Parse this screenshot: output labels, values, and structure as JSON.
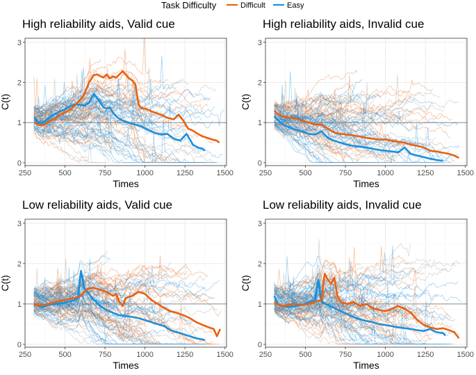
{
  "chart_data": {
    "type": "line",
    "legend": {
      "title": "Task Difficulty",
      "position": "top",
      "entries": [
        {
          "name": "Difficult",
          "color": "#E8610F"
        },
        {
          "name": "Easy",
          "color": "#1B8FDB"
        }
      ]
    },
    "colors": {
      "difficult": "#E8610F",
      "easy": "#1B8FDB",
      "neutral": "#9a9a9a",
      "reference": "#8c8c8c",
      "grid": "#ebebeb"
    },
    "reference_line_y": 1,
    "xlim": [
      250,
      1510
    ],
    "ylim": [
      -0.07,
      3.1
    ],
    "x_ticks": [
      250,
      500,
      750,
      1000,
      1250,
      1500
    ],
    "y_ticks": [
      0,
      1,
      2,
      3
    ],
    "panels": [
      {
        "title": "High reliability aids, Valid cue",
        "xlabel": "Times",
        "ylabel": "C(t)",
        "difficult_mean": {
          "x": [
            310,
            330,
            350,
            380,
            410,
            440,
            470,
            500,
            530,
            560,
            590,
            620,
            650,
            680,
            700,
            720,
            740,
            760,
            780,
            800,
            820,
            840,
            860,
            880,
            900,
            920,
            940,
            960,
            980,
            1000,
            1030,
            1060,
            1100,
            1140,
            1180,
            1210,
            1240,
            1270,
            1300,
            1330,
            1360,
            1390,
            1420,
            1450,
            1465
          ],
          "y": [
            1.02,
            0.95,
            0.93,
            0.97,
            1.05,
            1.1,
            1.2,
            1.25,
            1.32,
            1.42,
            1.55,
            1.7,
            2.0,
            2.18,
            2.2,
            2.16,
            2.12,
            2.2,
            2.1,
            2.15,
            2.12,
            2.2,
            2.28,
            2.2,
            2.1,
            2.05,
            1.95,
            1.45,
            1.35,
            1.35,
            1.3,
            1.25,
            1.2,
            1.12,
            1.08,
            1.2,
            1.05,
            0.85,
            0.8,
            0.72,
            0.66,
            0.62,
            0.58,
            0.55,
            0.5
          ]
        },
        "easy_mean": {
          "x": [
            310,
            330,
            350,
            380,
            410,
            440,
            470,
            500,
            530,
            560,
            590,
            620,
            650,
            680,
            700,
            720,
            740,
            760,
            780,
            800,
            830,
            860,
            900,
            940,
            980,
            1020,
            1060,
            1100,
            1140,
            1180,
            1220,
            1260,
            1300,
            1330,
            1360,
            1375
          ],
          "y": [
            1.12,
            1.0,
            0.98,
            1.05,
            1.15,
            1.22,
            1.28,
            1.33,
            1.4,
            1.45,
            1.45,
            1.42,
            1.5,
            1.72,
            1.62,
            1.5,
            1.38,
            1.35,
            1.38,
            1.25,
            1.12,
            1.05,
            1.0,
            0.95,
            0.9,
            0.82,
            0.75,
            0.7,
            0.72,
            0.6,
            0.55,
            0.72,
            0.45,
            0.38,
            0.35,
            0.3
          ]
        },
        "individual_traces": {
          "difficult": 34,
          "easy": 34,
          "neutral": 18,
          "end_range": [
            650,
            1500
          ]
        }
      },
      {
        "title": "High reliability aids, Invalid cue",
        "xlabel": "Times",
        "ylabel": "C(t)",
        "difficult_mean": {
          "x": [
            305,
            330,
            360,
            400,
            440,
            480,
            520,
            560,
            600,
            640,
            680,
            720,
            760,
            800,
            840,
            880,
            920,
            960,
            1000,
            1040,
            1080,
            1120,
            1160,
            1200,
            1240,
            1280,
            1320,
            1360,
            1400,
            1430,
            1460
          ],
          "y": [
            1.3,
            1.2,
            1.15,
            1.12,
            1.1,
            1.05,
            1.0,
            0.95,
            0.95,
            0.85,
            0.75,
            0.72,
            0.7,
            0.68,
            0.65,
            0.62,
            0.6,
            0.58,
            0.58,
            0.55,
            0.52,
            0.5,
            0.45,
            0.42,
            0.38,
            0.3,
            0.28,
            0.25,
            0.22,
            0.18,
            0.12
          ]
        },
        "easy_mean": {
          "x": [
            305,
            330,
            360,
            400,
            440,
            480,
            520,
            560,
            600,
            640,
            680,
            720,
            760,
            800,
            840,
            880,
            920,
            960,
            1000,
            1040,
            1080,
            1120,
            1160,
            1200,
            1240,
            1280,
            1320,
            1360
          ],
          "y": [
            1.15,
            1.05,
            0.95,
            0.88,
            0.82,
            0.78,
            0.72,
            0.7,
            0.78,
            0.62,
            0.55,
            0.5,
            0.45,
            0.42,
            0.4,
            0.38,
            0.35,
            0.32,
            0.3,
            0.28,
            0.26,
            0.38,
            0.22,
            0.18,
            0.14,
            0.1,
            0.07,
            0.05
          ]
        },
        "individual_traces": {
          "difficult": 30,
          "easy": 36,
          "neutral": 18,
          "end_range": [
            600,
            1480
          ]
        }
      },
      {
        "title": "Low reliability aids, Valid cue",
        "xlabel": "Times",
        "ylabel": "C(t)",
        "difficult_mean": {
          "x": [
            305,
            330,
            360,
            400,
            440,
            480,
            520,
            560,
            600,
            640,
            680,
            720,
            760,
            800,
            820,
            840,
            860,
            880,
            920,
            960,
            1000,
            1040,
            1080,
            1120,
            1160,
            1200,
            1240,
            1280,
            1320,
            1360,
            1400,
            1430,
            1450,
            1470
          ],
          "y": [
            1.0,
            0.95,
            0.98,
            1.0,
            1.05,
            1.08,
            1.12,
            1.15,
            1.2,
            1.38,
            1.4,
            1.35,
            1.3,
            1.2,
            1.25,
            1.05,
            0.95,
            1.15,
            1.2,
            1.3,
            1.25,
            1.1,
            1.0,
            0.9,
            0.82,
            0.78,
            0.72,
            0.65,
            0.55,
            0.48,
            0.42,
            0.38,
            0.2,
            0.38
          ]
        },
        "easy_mean": {
          "x": [
            305,
            330,
            360,
            400,
            440,
            480,
            520,
            560,
            580,
            600,
            620,
            640,
            680,
            720,
            760,
            800,
            840,
            880,
            920,
            960,
            1000,
            1040,
            1080,
            1120,
            1160,
            1200,
            1240,
            1280,
            1320,
            1360,
            1375
          ],
          "y": [
            1.0,
            0.95,
            0.92,
            0.98,
            1.0,
            1.02,
            1.05,
            1.1,
            1.15,
            1.82,
            1.4,
            1.3,
            1.1,
            0.95,
            0.85,
            0.78,
            0.72,
            0.7,
            0.68,
            0.65,
            0.6,
            0.55,
            0.5,
            0.45,
            0.35,
            0.3,
            0.25,
            0.2,
            0.15,
            0.12,
            0.1
          ]
        },
        "individual_traces": {
          "difficult": 34,
          "easy": 36,
          "neutral": 20,
          "end_range": [
            650,
            1500
          ]
        }
      },
      {
        "title": "Low reliability aids, Invalid cue",
        "xlabel": "Times",
        "ylabel": "C(t)",
        "difficult_mean": {
          "x": [
            305,
            330,
            360,
            400,
            440,
            480,
            520,
            560,
            600,
            620,
            640,
            660,
            680,
            700,
            720,
            760,
            800,
            840,
            880,
            920,
            960,
            1000,
            1040,
            1080,
            1120,
            1160,
            1200,
            1240,
            1280,
            1320,
            1360,
            1400,
            1430,
            1460
          ],
          "y": [
            1.05,
            0.98,
            0.95,
            0.98,
            1.0,
            0.98,
            1.0,
            1.05,
            1.1,
            1.75,
            1.6,
            1.5,
            1.65,
            1.2,
            1.05,
            1.0,
            1.05,
            0.95,
            1.0,
            0.9,
            0.85,
            0.82,
            0.88,
            0.95,
            0.88,
            0.78,
            0.6,
            0.48,
            0.42,
            0.38,
            0.4,
            0.35,
            0.3,
            0.15
          ]
        },
        "easy_mean": {
          "x": [
            305,
            330,
            360,
            400,
            440,
            480,
            520,
            560,
            580,
            600,
            640,
            680,
            720,
            760,
            800,
            840,
            880,
            920,
            960,
            1000,
            1040,
            1080,
            1120,
            1160,
            1200,
            1240,
            1280,
            1320,
            1360,
            1375
          ],
          "y": [
            1.2,
            0.98,
            0.95,
            0.92,
            0.95,
            0.98,
            1.05,
            1.1,
            1.6,
            1.05,
            0.98,
            0.9,
            0.82,
            0.75,
            0.68,
            0.62,
            0.58,
            0.55,
            0.5,
            0.48,
            0.45,
            0.42,
            0.4,
            0.38,
            0.35,
            0.33,
            0.38,
            0.3,
            0.28,
            0.22
          ]
        },
        "individual_traces": {
          "difficult": 32,
          "easy": 36,
          "neutral": 20,
          "end_range": [
            650,
            1480
          ]
        }
      }
    ]
  }
}
